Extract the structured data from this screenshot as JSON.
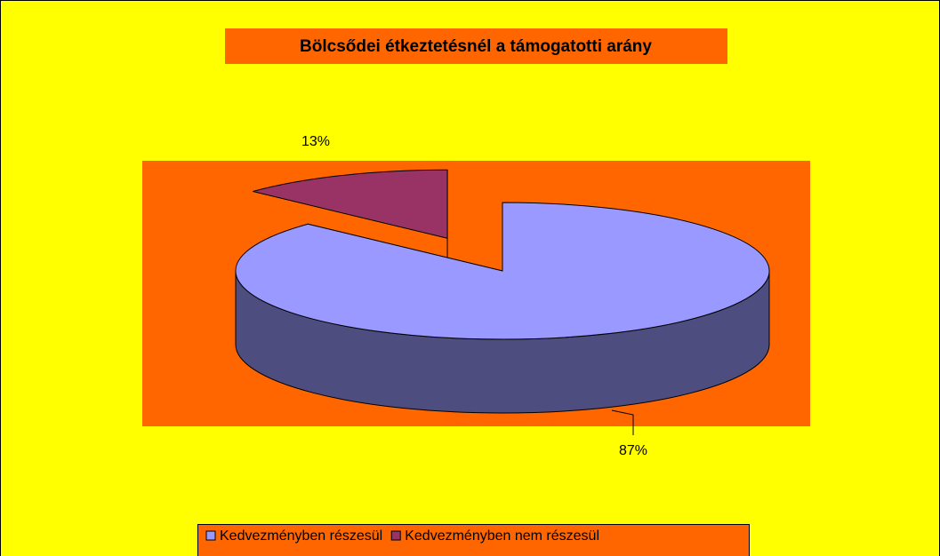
{
  "chart_data": {
    "type": "pie",
    "title": "Bölcsődei étkeztetésnél a támogatotti arány",
    "categories": [
      "Kedvezményben részesül",
      "Kedvezményben nem részesül"
    ],
    "values": [
      87,
      13
    ],
    "value_labels": [
      "87%",
      "13%"
    ],
    "colors": [
      "#9999ff",
      "#993366"
    ],
    "legend": "bottom"
  }
}
